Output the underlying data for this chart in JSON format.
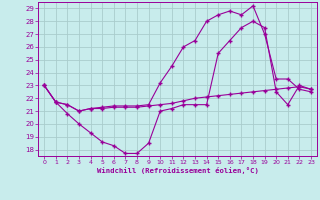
{
  "xlabel": "Windchill (Refroidissement éolien,°C)",
  "background_color": "#c8ecec",
  "line_color": "#990099",
  "grid_color": "#aacccc",
  "xlim": [
    -0.5,
    23.5
  ],
  "ylim": [
    17.5,
    29.5
  ],
  "yticks": [
    18,
    19,
    20,
    21,
    22,
    23,
    24,
    25,
    26,
    27,
    28,
    29
  ],
  "xticks": [
    0,
    1,
    2,
    3,
    4,
    5,
    6,
    7,
    8,
    9,
    10,
    11,
    12,
    13,
    14,
    15,
    16,
    17,
    18,
    19,
    20,
    21,
    22,
    23
  ],
  "curve1_x": [
    0,
    1,
    2,
    3,
    4,
    5,
    6,
    7,
    8,
    9,
    10,
    11,
    12,
    13,
    14,
    15,
    16,
    17,
    18,
    19,
    20,
    21,
    22,
    23
  ],
  "curve1_y": [
    23,
    21.7,
    21.5,
    21.0,
    21.2,
    21.2,
    21.3,
    21.3,
    21.3,
    21.4,
    21.5,
    21.6,
    21.8,
    22.0,
    22.1,
    22.2,
    22.3,
    22.4,
    22.5,
    22.6,
    22.7,
    22.8,
    22.9,
    22.7
  ],
  "curve2_x": [
    0,
    1,
    2,
    3,
    4,
    5,
    6,
    7,
    8,
    9,
    10,
    11,
    12,
    13,
    14,
    15,
    16,
    17,
    18,
    19,
    20,
    21,
    22,
    23
  ],
  "curve2_y": [
    23,
    21.7,
    21.5,
    21.0,
    21.2,
    21.3,
    21.4,
    21.4,
    21.4,
    21.5,
    23.2,
    24.5,
    26.0,
    26.5,
    28.0,
    28.5,
    28.8,
    28.5,
    29.2,
    27.0,
    23.5,
    23.5,
    22.7,
    22.5
  ],
  "curve3_x": [
    0,
    1,
    2,
    3,
    4,
    5,
    6,
    7,
    8,
    9,
    10,
    11,
    12,
    13,
    14,
    15,
    16,
    17,
    18,
    19,
    20,
    21,
    22,
    23
  ],
  "curve3_y": [
    23,
    21.7,
    20.8,
    20.0,
    19.3,
    18.6,
    18.3,
    17.7,
    17.7,
    18.5,
    21.0,
    21.2,
    21.5,
    21.5,
    21.5,
    25.5,
    26.5,
    27.5,
    28.0,
    27.5,
    22.5,
    21.5,
    23.0,
    22.7
  ]
}
